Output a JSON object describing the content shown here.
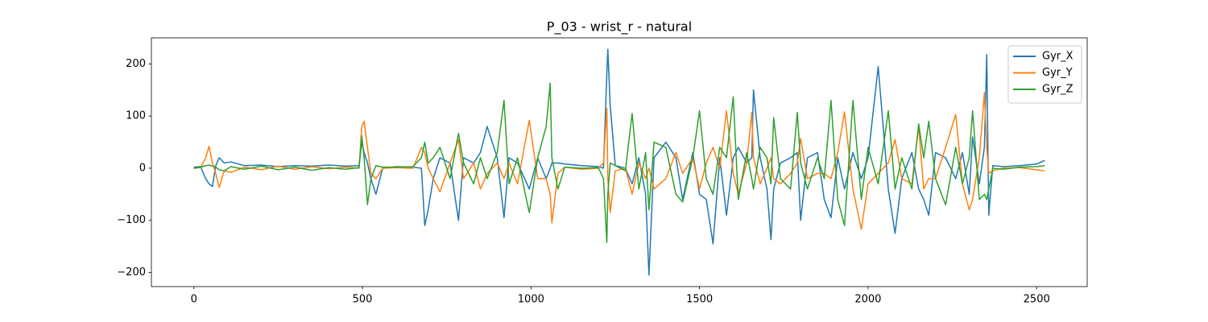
{
  "chart_data": {
    "type": "line",
    "title": "P_03 - wrist_r - natural",
    "x": [
      0,
      20,
      35,
      45,
      55,
      65,
      75,
      90,
      110,
      150,
      200,
      250,
      300,
      350,
      400,
      450,
      490,
      498,
      505,
      515,
      525,
      540,
      560,
      600,
      650,
      675,
      685,
      695,
      710,
      730,
      760,
      785,
      800,
      830,
      850,
      870,
      900,
      920,
      935,
      960,
      995,
      1020,
      1045,
      1057,
      1062,
      1080,
      1100,
      1150,
      1200,
      1215,
      1225,
      1228,
      1235,
      1250,
      1280,
      1300,
      1320,
      1340,
      1350,
      1365,
      1400,
      1430,
      1450,
      1480,
      1500,
      1520,
      1540,
      1560,
      1580,
      1600,
      1615,
      1640,
      1655,
      1660,
      1680,
      1700,
      1712,
      1720,
      1740,
      1770,
      1790,
      1800,
      1820,
      1850,
      1870,
      1890,
      1910,
      1930,
      1955,
      1980,
      2000,
      2030,
      2060,
      2080,
      2100,
      2130,
      2150,
      2165,
      2180,
      2200,
      2230,
      2260,
      2280,
      2300,
      2310,
      2330,
      2345,
      2352,
      2358,
      2370,
      2400,
      2450,
      2500,
      2524
    ],
    "series": [
      {
        "name": "Gyr_X",
        "color": "#1f77b4",
        "values": [
          2,
          3,
          -20,
          -30,
          -35,
          5,
          20,
          10,
          12,
          5,
          6,
          3,
          5,
          4,
          6,
          4,
          5,
          50,
          30,
          10,
          -20,
          -50,
          0,
          3,
          2,
          0,
          -110,
          -80,
          -20,
          20,
          10,
          -100,
          20,
          10,
          30,
          80,
          20,
          -95,
          20,
          10,
          -40,
          20,
          -20,
          0,
          10,
          10,
          8,
          5,
          3,
          0,
          180,
          228,
          120,
          5,
          0,
          -30,
          20,
          -50,
          -205,
          20,
          50,
          20,
          -60,
          30,
          -50,
          -60,
          -145,
          20,
          -90,
          20,
          40,
          10,
          20,
          150,
          20,
          -40,
          -137,
          -40,
          10,
          20,
          30,
          -100,
          20,
          30,
          -60,
          -95,
          20,
          -40,
          30,
          -20,
          20,
          195,
          -40,
          -125,
          -20,
          30,
          -40,
          -60,
          -90,
          30,
          20,
          -20,
          30,
          -50,
          60,
          -30,
          40,
          218,
          -90,
          5,
          3,
          5,
          8,
          15
        ]
      },
      {
        "name": "Gyr_Y",
        "color": "#ff7f0e",
        "values": [
          0,
          1,
          20,
          42,
          10,
          -10,
          -37,
          -5,
          -8,
          2,
          -3,
          4,
          -2,
          3,
          -1,
          2,
          0,
          80,
          90,
          40,
          -10,
          -20,
          0,
          1,
          0,
          40,
          30,
          0,
          -20,
          -45,
          10,
          55,
          -20,
          10,
          -40,
          -10,
          10,
          -20,
          10,
          -30,
          92,
          -20,
          -20,
          -50,
          -105,
          -10,
          2,
          -2,
          0,
          10,
          115,
          -20,
          -85,
          -5,
          0,
          -50,
          10,
          -20,
          0,
          -40,
          -20,
          30,
          -10,
          20,
          -40,
          10,
          40,
          0,
          110,
          -10,
          -50,
          10,
          107,
          20,
          -30,
          0,
          20,
          -20,
          -30,
          -10,
          10,
          57,
          -20,
          -10,
          -10,
          -20,
          30,
          108,
          -40,
          -117,
          -30,
          -10,
          10,
          55,
          -20,
          -30,
          80,
          -40,
          -20,
          -20,
          40,
          103,
          -30,
          -80,
          -60,
          20,
          145,
          40,
          -10,
          -5,
          0,
          1,
          -3,
          -5
        ]
      },
      {
        "name": "Gyr_Z",
        "color": "#2ca02c",
        "values": [
          0,
          2,
          5,
          6,
          4,
          2,
          -3,
          -5,
          3,
          -2,
          4,
          -3,
          2,
          -4,
          1,
          -2,
          1,
          62,
          20,
          -70,
          -20,
          5,
          2,
          2,
          3,
          20,
          50,
          10,
          20,
          40,
          -20,
          67,
          10,
          -30,
          20,
          -20,
          30,
          130,
          -30,
          20,
          -85,
          20,
          80,
          163,
          20,
          -40,
          2,
          0,
          1,
          -20,
          -142,
          -50,
          10,
          5,
          -5,
          105,
          -40,
          30,
          -80,
          50,
          40,
          -50,
          -65,
          20,
          110,
          -20,
          -50,
          40,
          20,
          137,
          -60,
          30,
          -20,
          -40,
          40,
          20,
          -30,
          97,
          -20,
          -40,
          107,
          10,
          -40,
          20,
          -20,
          130,
          -60,
          -110,
          130,
          -60,
          40,
          -30,
          110,
          -40,
          20,
          -40,
          85,
          20,
          90,
          -20,
          -70,
          40,
          -30,
          20,
          110,
          -60,
          -50,
          -60,
          -40,
          0,
          -2,
          2,
          3,
          5
        ]
      }
    ],
    "xlim": [
      -126,
      2650
    ],
    "ylim": [
      -227,
      250
    ],
    "xticks": [
      0,
      500,
      1000,
      1500,
      2000,
      2500
    ],
    "yticks": [
      {
        "value": -200,
        "label": "−200"
      },
      {
        "value": -100,
        "label": "−100"
      },
      0,
      100,
      200
    ],
    "legend": "upper right",
    "grid": false
  }
}
